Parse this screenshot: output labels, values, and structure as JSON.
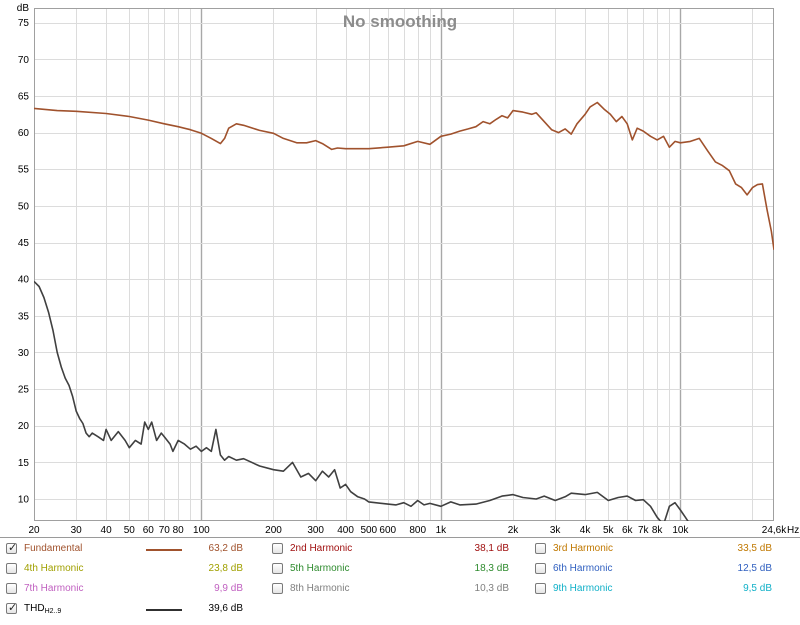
{
  "chart_data": {
    "type": "line",
    "title": "No smoothing",
    "y_unit": "dB",
    "x_unit": "Hz",
    "x_scale": "log",
    "xlim": [
      20,
      24600
    ],
    "ylim": [
      7,
      77
    ],
    "y_ticks": [
      10,
      15,
      20,
      25,
      30,
      35,
      40,
      45,
      50,
      55,
      60,
      65,
      70,
      75
    ],
    "x_ticks": [
      {
        "v": 20,
        "l": "20"
      },
      {
        "v": 30,
        "l": "30"
      },
      {
        "v": 40,
        "l": "40"
      },
      {
        "v": 50,
        "l": "50"
      },
      {
        "v": 60,
        "l": "60"
      },
      {
        "v": 70,
        "l": "70"
      },
      {
        "v": 80,
        "l": "80"
      },
      {
        "v": 100,
        "l": "100"
      },
      {
        "v": 200,
        "l": "200"
      },
      {
        "v": 300,
        "l": "300"
      },
      {
        "v": 400,
        "l": "400"
      },
      {
        "v": 500,
        "l": "500"
      },
      {
        "v": 600,
        "l": "600"
      },
      {
        "v": 800,
        "l": "800"
      },
      {
        "v": 1000,
        "l": "1k"
      },
      {
        "v": 2000,
        "l": "2k"
      },
      {
        "v": 3000,
        "l": "3k"
      },
      {
        "v": 4000,
        "l": "4k"
      },
      {
        "v": 5000,
        "l": "5k"
      },
      {
        "v": 6000,
        "l": "6k"
      },
      {
        "v": 7000,
        "l": "7k"
      },
      {
        "v": 8000,
        "l": "8k"
      },
      {
        "v": 10000,
        "l": "10k"
      },
      {
        "v": 24600,
        "l": "24,6k"
      }
    ],
    "grid": true,
    "series": [
      {
        "name": "Fundamental",
        "color": "#a0522d",
        "points": [
          [
            20,
            63.3
          ],
          [
            25,
            63.0
          ],
          [
            30,
            62.9
          ],
          [
            40,
            62.6
          ],
          [
            50,
            62.2
          ],
          [
            60,
            61.7
          ],
          [
            70,
            61.2
          ],
          [
            80,
            60.8
          ],
          [
            90,
            60.4
          ],
          [
            100,
            59.9
          ],
          [
            110,
            59.2
          ],
          [
            120,
            58.5
          ],
          [
            125,
            59.2
          ],
          [
            130,
            60.6
          ],
          [
            140,
            61.2
          ],
          [
            150,
            61.0
          ],
          [
            175,
            60.3
          ],
          [
            200,
            59.9
          ],
          [
            220,
            59.2
          ],
          [
            250,
            58.6
          ],
          [
            275,
            58.6
          ],
          [
            300,
            58.9
          ],
          [
            320,
            58.5
          ],
          [
            350,
            57.7
          ],
          [
            370,
            57.9
          ],
          [
            400,
            57.8
          ],
          [
            450,
            57.8
          ],
          [
            500,
            57.8
          ],
          [
            600,
            58.0
          ],
          [
            700,
            58.2
          ],
          [
            800,
            58.8
          ],
          [
            900,
            58.4
          ],
          [
            1000,
            59.5
          ],
          [
            1100,
            59.8
          ],
          [
            1200,
            60.2
          ],
          [
            1300,
            60.5
          ],
          [
            1400,
            60.8
          ],
          [
            1500,
            61.5
          ],
          [
            1600,
            61.2
          ],
          [
            1700,
            61.8
          ],
          [
            1800,
            62.3
          ],
          [
            1900,
            62.0
          ],
          [
            2000,
            63.0
          ],
          [
            2200,
            62.8
          ],
          [
            2400,
            62.5
          ],
          [
            2500,
            62.7
          ],
          [
            2700,
            61.5
          ],
          [
            2900,
            60.4
          ],
          [
            3100,
            60.0
          ],
          [
            3300,
            60.5
          ],
          [
            3500,
            59.8
          ],
          [
            3700,
            61.2
          ],
          [
            4000,
            62.5
          ],
          [
            4200,
            63.5
          ],
          [
            4500,
            64.1
          ],
          [
            4800,
            63.2
          ],
          [
            5100,
            62.5
          ],
          [
            5400,
            61.5
          ],
          [
            5700,
            62.2
          ],
          [
            6000,
            61.2
          ],
          [
            6300,
            59.0
          ],
          [
            6600,
            60.6
          ],
          [
            7000,
            60.2
          ],
          [
            7500,
            59.5
          ],
          [
            8000,
            59.0
          ],
          [
            8500,
            59.5
          ],
          [
            9000,
            58.0
          ],
          [
            9500,
            58.8
          ],
          [
            10000,
            58.6
          ],
          [
            11000,
            58.8
          ],
          [
            12000,
            59.2
          ],
          [
            13000,
            57.5
          ],
          [
            14000,
            56.0
          ],
          [
            15000,
            55.5
          ],
          [
            16000,
            54.8
          ],
          [
            17000,
            53.0
          ],
          [
            18000,
            52.5
          ],
          [
            19000,
            51.5
          ],
          [
            20000,
            52.5
          ],
          [
            21000,
            52.9
          ],
          [
            22000,
            53.0
          ],
          [
            23000,
            49.5
          ],
          [
            24000,
            46.5
          ],
          [
            24600,
            44.0
          ]
        ]
      },
      {
        "name": "THD",
        "color": "#404040",
        "points": [
          [
            20,
            39.7
          ],
          [
            21,
            39.0
          ],
          [
            22,
            37.5
          ],
          [
            23,
            35.5
          ],
          [
            24,
            33.0
          ],
          [
            25,
            30.0
          ],
          [
            26,
            28.0
          ],
          [
            27,
            26.5
          ],
          [
            28,
            25.5
          ],
          [
            29,
            24.0
          ],
          [
            30,
            22.0
          ],
          [
            31,
            21.0
          ],
          [
            32,
            20.3
          ],
          [
            33,
            19.0
          ],
          [
            34,
            18.5
          ],
          [
            35,
            19.0
          ],
          [
            37,
            18.5
          ],
          [
            39,
            18.0
          ],
          [
            40,
            19.5
          ],
          [
            42,
            18.0
          ],
          [
            45,
            19.2
          ],
          [
            48,
            18.0
          ],
          [
            50,
            17.0
          ],
          [
            53,
            18.0
          ],
          [
            56,
            17.5
          ],
          [
            58,
            20.5
          ],
          [
            60,
            19.5
          ],
          [
            62,
            20.5
          ],
          [
            65,
            18.0
          ],
          [
            68,
            19.0
          ],
          [
            70,
            18.5
          ],
          [
            74,
            17.5
          ],
          [
            76,
            16.5
          ],
          [
            80,
            18.0
          ],
          [
            85,
            17.5
          ],
          [
            90,
            16.8
          ],
          [
            95,
            17.2
          ],
          [
            100,
            16.5
          ],
          [
            105,
            17.0
          ],
          [
            110,
            16.5
          ],
          [
            115,
            19.5
          ],
          [
            120,
            16.0
          ],
          [
            125,
            15.3
          ],
          [
            130,
            15.8
          ],
          [
            140,
            15.3
          ],
          [
            150,
            15.5
          ],
          [
            175,
            14.5
          ],
          [
            200,
            14.0
          ],
          [
            220,
            13.8
          ],
          [
            240,
            15.0
          ],
          [
            260,
            13.0
          ],
          [
            280,
            13.5
          ],
          [
            300,
            12.5
          ],
          [
            320,
            13.8
          ],
          [
            340,
            13.0
          ],
          [
            360,
            14.0
          ],
          [
            380,
            11.5
          ],
          [
            400,
            12.0
          ],
          [
            420,
            11.0
          ],
          [
            450,
            10.3
          ],
          [
            480,
            10.0
          ],
          [
            500,
            9.6
          ],
          [
            600,
            9.3
          ],
          [
            650,
            9.2
          ],
          [
            700,
            9.5
          ],
          [
            750,
            9.0
          ],
          [
            800,
            9.8
          ],
          [
            850,
            9.2
          ],
          [
            900,
            9.4
          ],
          [
            1000,
            9.0
          ],
          [
            1100,
            9.6
          ],
          [
            1200,
            9.2
          ],
          [
            1400,
            9.3
          ],
          [
            1600,
            9.8
          ],
          [
            1800,
            10.4
          ],
          [
            2000,
            10.6
          ],
          [
            2200,
            10.2
          ],
          [
            2500,
            10.0
          ],
          [
            2700,
            10.4
          ],
          [
            3000,
            9.8
          ],
          [
            3300,
            10.3
          ],
          [
            3500,
            10.8
          ],
          [
            4000,
            10.6
          ],
          [
            4500,
            10.9
          ],
          [
            5000,
            9.8
          ],
          [
            5500,
            10.2
          ],
          [
            6000,
            10.4
          ],
          [
            6500,
            9.8
          ],
          [
            7000,
            9.9
          ],
          [
            7500,
            9.0
          ],
          [
            8000,
            7.5
          ],
          [
            8500,
            6.5
          ],
          [
            9000,
            9.0
          ],
          [
            9500,
            9.5
          ],
          [
            10000,
            8.5
          ],
          [
            10500,
            7.5
          ],
          [
            11000,
            6.5
          ]
        ]
      }
    ]
  },
  "legend": {
    "rows": [
      [
        {
          "name": "Fundamental",
          "value": "63,2 dB",
          "color": "#a0522d",
          "checked": true,
          "swatch": true
        },
        {
          "name": "2nd Harmonic",
          "value": "38,1 dB",
          "color": "#a01010",
          "checked": false,
          "swatch": false
        },
        {
          "name": "3rd Harmonic",
          "value": "33,5 dB",
          "color": "#c07800",
          "checked": false,
          "swatch": false
        }
      ],
      [
        {
          "name": "4th Harmonic",
          "value": "23,8 dB",
          "color": "#a0a000",
          "checked": false,
          "swatch": false
        },
        {
          "name": "5th Harmonic",
          "value": "18,3 dB",
          "color": "#2e8b2e",
          "checked": false,
          "swatch": false
        },
        {
          "name": "6th Harmonic",
          "value": "12,5 dB",
          "color": "#3060c0",
          "checked": false,
          "swatch": false
        }
      ],
      [
        {
          "name": "7th Harmonic",
          "value": "9,9 dB",
          "color": "#c060c0",
          "checked": false,
          "swatch": false
        },
        {
          "name": "8th Harmonic",
          "value": "10,3 dB",
          "color": "#808080",
          "checked": false,
          "swatch": false
        },
        {
          "name": "9th Harmonic",
          "value": "9,5 dB",
          "color": "#10b0c8",
          "checked": false,
          "swatch": false
        }
      ],
      [
        {
          "name": "THD",
          "sub": "H2..9",
          "value": "39,6 dB",
          "color": "#303030",
          "checked": true,
          "swatch": true
        }
      ]
    ]
  }
}
